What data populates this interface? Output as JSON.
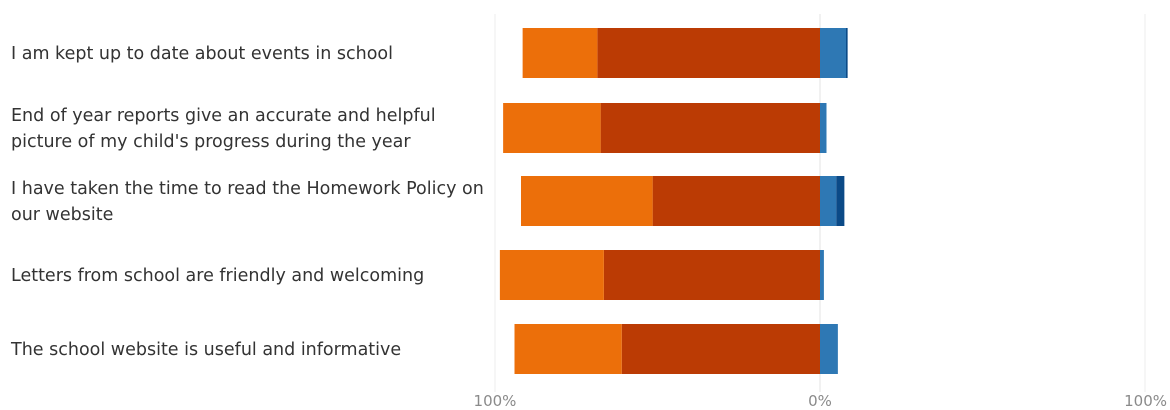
{
  "chart_data": {
    "type": "bar",
    "orientation": "horizontal",
    "stacked": "diverging",
    "title": "",
    "xlabel": "",
    "ylabel": "",
    "xlim": [
      -100,
      100
    ],
    "x_ticks": [
      "100%",
      "0%",
      "100%"
    ],
    "grid": true,
    "legend": "none",
    "categories": [
      [
        "I am kept up to date about events in school"
      ],
      [
        "End of year reports give an accurate and helpful",
        "picture of my child's progress during the year"
      ],
      [
        "I have taken the time to read the Homework Policy on",
        "our website"
      ],
      [
        "Letters from school are friendly and welcoming"
      ],
      [
        "The school website is useful and informative"
      ]
    ],
    "series": [
      {
        "side": "negative",
        "color": "#bb3b04",
        "values": [
          68.5,
          67.5,
          51.5,
          66.5,
          61
        ]
      },
      {
        "side": "negative",
        "color": "#ec6f0a",
        "values": [
          23,
          30,
          40.5,
          32,
          33
        ]
      },
      {
        "side": "positive",
        "color": "#2e78b4",
        "values": [
          8,
          2,
          5,
          1.2,
          5.5
        ]
      },
      {
        "side": "positive",
        "color": "#0b4a87",
        "values": [
          0.5,
          0,
          2.5,
          0,
          0
        ]
      }
    ]
  }
}
